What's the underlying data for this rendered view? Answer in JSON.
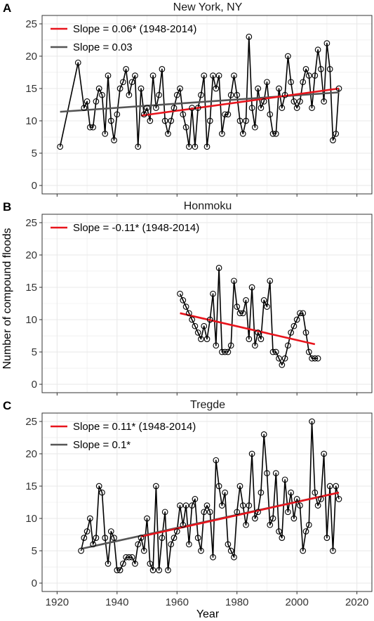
{
  "figure": {
    "ylabel": "Number of compound floods",
    "xlabel": "Year",
    "x_ticks": [
      "1920",
      "1940",
      "1960",
      "1980",
      "2000",
      "2020"
    ],
    "y_ticks": [
      "0",
      "5",
      "10",
      "15",
      "20",
      "25"
    ]
  },
  "colors": {
    "series": "#000000",
    "trend_period": "#e8141c",
    "trend_full": "#555555",
    "grid": "#e9e9e9",
    "frame": "#333333"
  },
  "chart_data": [
    {
      "panel": "A",
      "type": "line",
      "title": "New York, NY",
      "xlim": [
        1915,
        2025
      ],
      "ylim": [
        -1.3,
        26.3
      ],
      "grid": true,
      "legend_position": "top-left",
      "x": [
        1921,
        1927,
        1929,
        1930,
        1931,
        1932,
        1933,
        1934,
        1935,
        1936,
        1937,
        1938,
        1939,
        1940,
        1941,
        1942,
        1943,
        1944,
        1945,
        1946,
        1947,
        1948,
        1949,
        1950,
        1951,
        1952,
        1953,
        1954,
        1955,
        1956,
        1957,
        1958,
        1959,
        1960,
        1961,
        1962,
        1963,
        1964,
        1965,
        1966,
        1967,
        1968,
        1969,
        1970,
        1971,
        1972,
        1973,
        1974,
        1975,
        1976,
        1977,
        1978,
        1979,
        1980,
        1981,
        1982,
        1983,
        1984,
        1985,
        1986,
        1987,
        1988,
        1989,
        1990,
        1991,
        1992,
        1993,
        1994,
        1995,
        1996,
        1997,
        1998,
        1999,
        2000,
        2001,
        2002,
        2003,
        2004,
        2005,
        2006,
        2007,
        2008,
        2009,
        2010,
        2011,
        2012,
        2013,
        2014
      ],
      "y": [
        6,
        19,
        12,
        13,
        9,
        9,
        13,
        15,
        14,
        8,
        17,
        10,
        7,
        11,
        15,
        16,
        18,
        14,
        16,
        17,
        6,
        15,
        11,
        12,
        10,
        17,
        12,
        14,
        18,
        10,
        8,
        10,
        12,
        14,
        15,
        11,
        9,
        6,
        12,
        6,
        12,
        14,
        17,
        6,
        10,
        17,
        15,
        17,
        8,
        11,
        11,
        14,
        17,
        14,
        10,
        8,
        10,
        23,
        12,
        9,
        15,
        12,
        13,
        16,
        11,
        8,
        8,
        15,
        12,
        14,
        20,
        16,
        13,
        12,
        13,
        16,
        18,
        17,
        12,
        17,
        21,
        18,
        13,
        22,
        18,
        7,
        8,
        15
      ],
      "trends": [
        {
          "name": "Slope = 0.06* (1948-2014)",
          "color": "#e8141c",
          "x": [
            1948,
            2014
          ],
          "y": [
            10.8,
            15.0
          ]
        },
        {
          "name": "Slope = 0.03",
          "color": "#555555",
          "x": [
            1921,
            2014
          ],
          "y": [
            11.4,
            14.4
          ]
        }
      ]
    },
    {
      "panel": "B",
      "type": "line",
      "title": "Honmoku",
      "xlim": [
        1915,
        2025
      ],
      "ylim": [
        -1.3,
        26.3
      ],
      "grid": true,
      "legend_position": "top-left",
      "x": [
        1961,
        1962,
        1963,
        1964,
        1965,
        1966,
        1967,
        1968,
        1969,
        1970,
        1971,
        1972,
        1973,
        1974,
        1975,
        1976,
        1977,
        1978,
        1979,
        1980,
        1981,
        1982,
        1983,
        1984,
        1985,
        1986,
        1987,
        1988,
        1989,
        1990,
        1991,
        1992,
        1993,
        1994,
        1995,
        1996,
        1997,
        1998,
        1999,
        2000,
        2001,
        2002,
        2003,
        2004,
        2005,
        2006,
        2007
      ],
      "y": [
        14,
        13,
        12,
        11,
        10,
        9,
        8,
        7,
        9,
        7,
        10,
        14,
        6,
        18,
        5,
        5,
        5,
        6,
        16,
        12,
        11,
        11,
        13,
        7,
        15,
        6,
        8,
        7,
        13,
        12,
        16,
        5,
        5,
        4,
        3,
        4,
        6,
        8,
        9,
        10,
        11,
        11,
        8,
        5,
        4,
        4,
        4
      ],
      "trends": [
        {
          "name": "Slope = -0.11* (1948-2014)",
          "color": "#e8141c",
          "x": [
            1961,
            2006
          ],
          "y": [
            11.0,
            6.2
          ]
        }
      ]
    },
    {
      "panel": "C",
      "type": "line",
      "title": "Tregde",
      "xlim": [
        1915,
        2025
      ],
      "ylim": [
        -1.3,
        26.3
      ],
      "grid": true,
      "legend_position": "top-left",
      "x": [
        1928,
        1929,
        1930,
        1931,
        1932,
        1933,
        1934,
        1935,
        1936,
        1937,
        1938,
        1939,
        1940,
        1941,
        1942,
        1943,
        1944,
        1945,
        1946,
        1947,
        1948,
        1949,
        1950,
        1951,
        1952,
        1953,
        1954,
        1955,
        1956,
        1957,
        1958,
        1959,
        1960,
        1961,
        1962,
        1963,
        1964,
        1965,
        1966,
        1967,
        1968,
        1969,
        1970,
        1971,
        1972,
        1973,
        1974,
        1975,
        1976,
        1977,
        1978,
        1979,
        1980,
        1981,
        1982,
        1983,
        1984,
        1985,
        1986,
        1987,
        1988,
        1989,
        1990,
        1991,
        1992,
        1993,
        1994,
        1995,
        1996,
        1997,
        1998,
        1999,
        2000,
        2001,
        2002,
        2003,
        2004,
        2005,
        2006,
        2007,
        2008,
        2009,
        2010,
        2011,
        2012,
        2013,
        2014
      ],
      "y": [
        5,
        7,
        8,
        10,
        6,
        7,
        15,
        14,
        7,
        3,
        8,
        7,
        2,
        2,
        3,
        4,
        4,
        4,
        3,
        6,
        7,
        5,
        10,
        3,
        2,
        15,
        2,
        7,
        11,
        2,
        6,
        7,
        8,
        12,
        9,
        12,
        6,
        12,
        13,
        7,
        5,
        11,
        12,
        11,
        4,
        19,
        15,
        12,
        14,
        6,
        5,
        4,
        11,
        15,
        12,
        9,
        12,
        20,
        10,
        11,
        14,
        23,
        17,
        9,
        10,
        17,
        8,
        7,
        16,
        11,
        14,
        10,
        13,
        12,
        5,
        8,
        9,
        25,
        14,
        12,
        13,
        20,
        7,
        15,
        5,
        15,
        13
      ],
      "trends": [
        {
          "name": "Slope = 0.11* (1948-2014)",
          "color": "#e8141c",
          "x": [
            1948,
            2014
          ],
          "y": [
            7.2,
            14.0
          ]
        },
        {
          "name": "Slope = 0.1*",
          "color": "#555555",
          "x": [
            1928,
            2014
          ],
          "y": [
            5.3,
            14.0
          ]
        }
      ]
    }
  ]
}
